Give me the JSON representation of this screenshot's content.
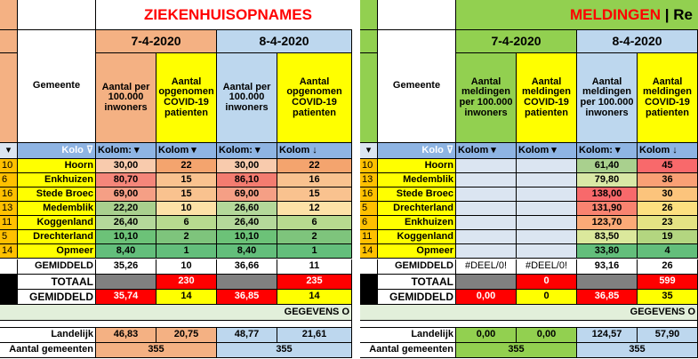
{
  "colors": {
    "salmon": "#f4b183",
    "salmon_dark": "#f8a27a",
    "blue_light": "#bdd7ee",
    "yellow": "#ffff00",
    "green_header": "#92d050",
    "red": "#ff0000",
    "grey_row": "#e2efda",
    "light_green": "#e2efda"
  },
  "left": {
    "title": "ZIEKENHUISOPNAMES",
    "date1": "7-4-2020",
    "date2": "8-4-2020",
    "col_gemeente": "Gemeente",
    "col_per100k": "Aantal per 100.000 inwoners",
    "col_opgenomen": "Aantal opgenomen COVID-19 patienten",
    "filter_kolom1": "Kolo",
    "filter_kolom2": "Kolom:",
    "filter_kolom3": "Kolom",
    "filter_kolom4": "Kolom:",
    "filter_kolom5": "Kolom",
    "rows": [
      {
        "num": "10",
        "name": "Hoorn",
        "a": "30,00",
        "b": "22",
        "c": "30,00",
        "d": "22"
      },
      {
        "num": "6",
        "name": "Enkhuizen",
        "a": "80,70",
        "b": "15",
        "c": "86,10",
        "d": "16"
      },
      {
        "num": "16",
        "name": "Stede Broec",
        "a": "69,00",
        "b": "15",
        "c": "69,00",
        "d": "15"
      },
      {
        "num": "13",
        "name": "Medemblik",
        "a": "22,20",
        "b": "10",
        "c": "26,60",
        "d": "12"
      },
      {
        "num": "11",
        "name": "Koggenland",
        "a": "26,40",
        "b": "6",
        "c": "26,40",
        "d": "6"
      },
      {
        "num": "5",
        "name": "Drechterland",
        "a": "10,10",
        "b": "2",
        "c": "10,10",
        "d": "2"
      },
      {
        "num": "14",
        "name": "Opmeer",
        "a": "8,40",
        "b": "1",
        "c": "8,40",
        "d": "1"
      }
    ],
    "gemiddeld_label": "GEMIDDELD",
    "gemiddeld": {
      "a": "35,26",
      "b": "10",
      "c": "36,66",
      "d": "11"
    },
    "totaal_label": "TOTAAL",
    "totaal": {
      "b": "230",
      "d": "235"
    },
    "gemiddeld2_label": "GEMIDDELD",
    "gemiddeld2": {
      "a": "35,74",
      "b": "14",
      "c": "36,85",
      "d": "14"
    },
    "gegevens": "GEGEVENS O",
    "landelijk_label": "Landelijk",
    "landelijk": {
      "a": "46,83",
      "b": "20,75",
      "c": "48,77",
      "d": "21,61"
    },
    "aantal_label": "Aantal gemeenten",
    "aantal": {
      "a": "355",
      "c": "355"
    }
  },
  "right": {
    "title_red": "MELDINGEN",
    "title_sep": " | Re",
    "date1": "7-4-2020",
    "date2": "8-4-2020",
    "col_gemeente": "Gemeente",
    "col_per100k": "Aantal meldingen per 100.000 inwoners",
    "col_meldingen": "Aantal meldingen COVID-19 patienten",
    "filter_kolom1": "Kolo",
    "filter_kolom2": "Kolom",
    "filter_kolom3": "Kolom",
    "filter_kolom4": "Kolom:",
    "filter_kolom5": "Kolom",
    "rows": [
      {
        "num": "10",
        "name": "Hoorn",
        "a": "",
        "b": "",
        "c": "61,40",
        "d": "45"
      },
      {
        "num": "13",
        "name": "Medemblik",
        "a": "",
        "b": "",
        "c": "79,80",
        "d": "36"
      },
      {
        "num": "16",
        "name": "Stede Broec",
        "a": "",
        "b": "",
        "c": "138,00",
        "d": "30"
      },
      {
        "num": "5",
        "name": "Drechterland",
        "a": "",
        "b": "",
        "c": "131,90",
        "d": "26"
      },
      {
        "num": "6",
        "name": "Enkhuizen",
        "a": "",
        "b": "",
        "c": "123,70",
        "d": "23"
      },
      {
        "num": "11",
        "name": "Koggenland",
        "a": "",
        "b": "",
        "c": "83,50",
        "d": "19"
      },
      {
        "num": "14",
        "name": "Opmeer",
        "a": "",
        "b": "",
        "c": "33,80",
        "d": "4"
      }
    ],
    "gemiddeld_label": "GEMIDDELD",
    "gemiddeld": {
      "a": "#DEEL/0!",
      "b": "#DEEL/0!",
      "c": "93,16",
      "d": "26"
    },
    "totaal_label": "TOTAAL",
    "totaal": {
      "b": "0",
      "d": "599"
    },
    "gemiddeld2_label": "GEMIDDELD",
    "gemiddeld2": {
      "a": "0,00",
      "b": "0",
      "c": "36,85",
      "d": "35"
    },
    "gegevens": "GEGEVENS O",
    "landelijk_label": "Landelijk",
    "landelijk": {
      "a": "0,00",
      "b": "0,00",
      "c": "124,57",
      "d": "57,90"
    },
    "aantal_label": "Aantal gemeenten",
    "aantal": {
      "a": "355",
      "c": "355"
    }
  }
}
